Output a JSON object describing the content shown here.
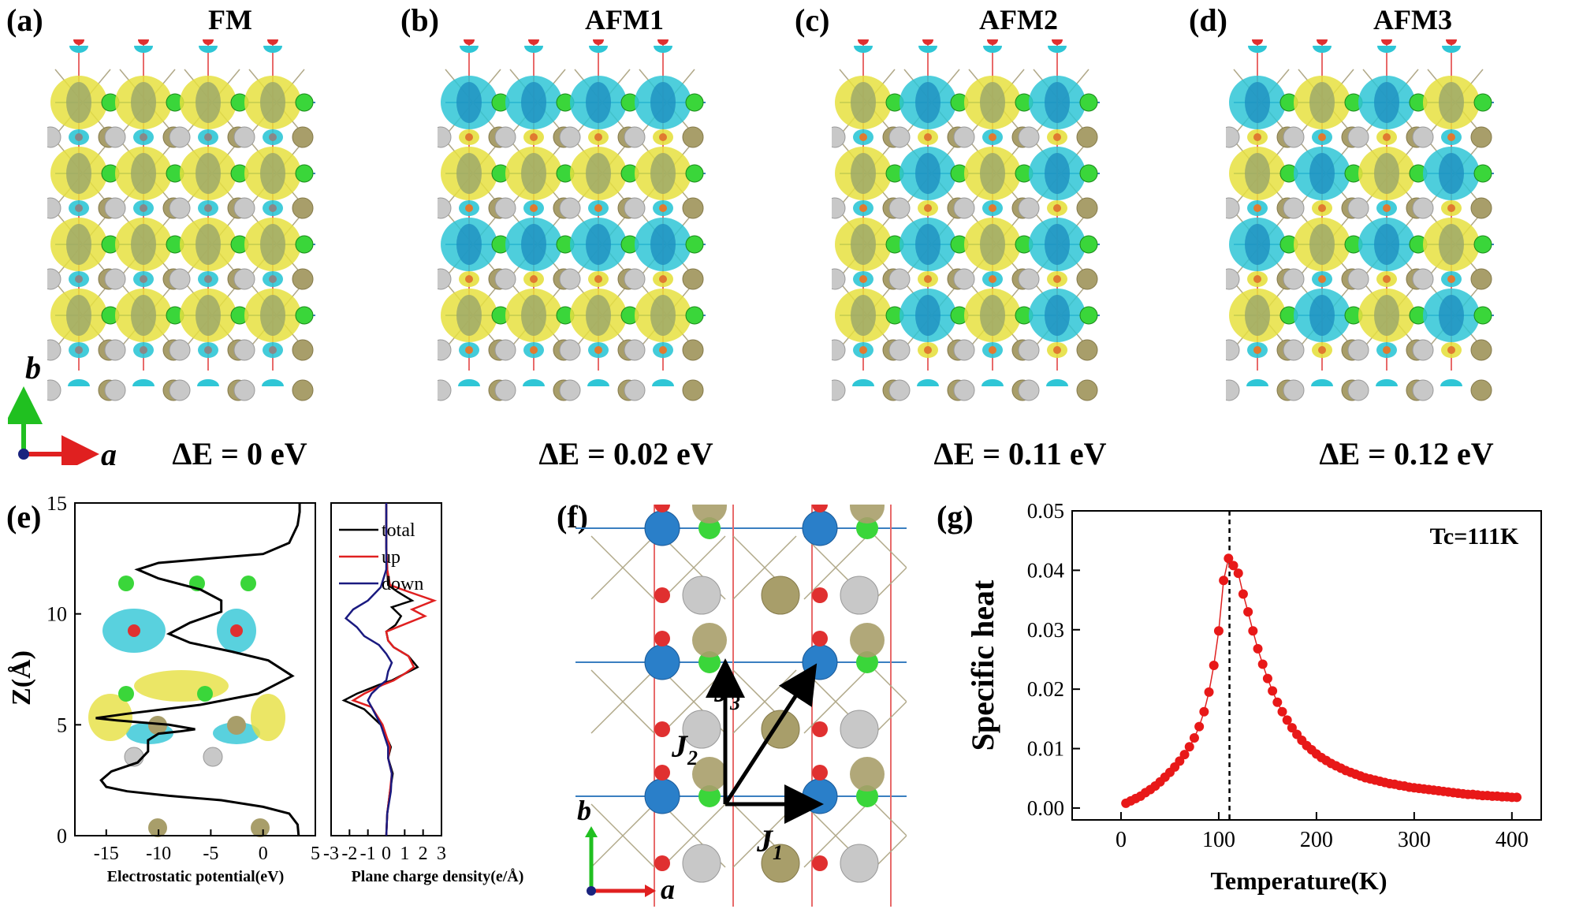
{
  "panels": {
    "a": {
      "letter": "(a)",
      "title": "FM",
      "energy": "ΔE = 0 eV"
    },
    "b": {
      "letter": "(b)",
      "title": "AFM1",
      "energy": "ΔE = 0.02 eV"
    },
    "c": {
      "letter": "(c)",
      "title": "AFM2",
      "energy": "ΔE = 0.11 eV"
    },
    "d": {
      "letter": "(d)",
      "title": "AFM3",
      "energy": "ΔE = 0.12 eV"
    },
    "e": {
      "letter": "(e)"
    },
    "f": {
      "letter": "(f)"
    },
    "g": {
      "letter": "(g)"
    }
  },
  "axes_labels": {
    "a": "a",
    "b": "b"
  },
  "colors": {
    "spin_up": "#e6e040",
    "spin_down": "#2fc6d6",
    "fe_atom": "#2a7fc9",
    "cl_atom": "#3ad63a",
    "o_atom": "#e03030",
    "te_atom": "#a89e6a",
    "ge_atom": "#c8c8c8"
  },
  "exchange_labels": [
    "J1",
    "J2",
    "J3"
  ],
  "chart_data": [
    {
      "type": "line",
      "id": "electrostatic-potential",
      "xlabel": "Electrostatic potential(eV)",
      "ylabel": "Z(Å)",
      "xlim": [
        -18,
        5
      ],
      "ylim": [
        0,
        15
      ],
      "xticks": [
        -15,
        -10,
        -5,
        0,
        5
      ],
      "yticks": [
        0,
        5,
        10,
        15
      ],
      "series": [
        {
          "x": [
            3.4,
            3.3,
            2.5,
            0.0,
            -4.0,
            -9.0,
            -13.0,
            -15.0,
            -15.5,
            -14.5,
            -12.0,
            -11.0,
            -11.0,
            -10.0,
            -8.0,
            -6.5,
            -9.0,
            -14.0,
            -16.0,
            -13.0,
            -6.0,
            -0.5,
            2.8,
            0.5,
            -3.0,
            -7.0,
            -9.0,
            -7.0,
            -4.0,
            -4.0,
            -6.0,
            -10.0,
            -12.0,
            -10.0,
            -5.0,
            0.0,
            2.5,
            3.3,
            3.5,
            3.5
          ],
          "y": [
            0.0,
            0.5,
            1.0,
            1.3,
            1.6,
            1.8,
            2.0,
            2.2,
            2.5,
            2.9,
            3.3,
            3.8,
            4.3,
            4.6,
            4.7,
            4.8,
            5.0,
            5.2,
            5.3,
            5.5,
            5.9,
            6.4,
            7.2,
            7.9,
            8.3,
            8.7,
            9.1,
            9.6,
            10.1,
            10.6,
            11.1,
            11.6,
            12.0,
            12.3,
            12.5,
            12.7,
            13.2,
            14.0,
            14.6,
            15.0
          ]
        }
      ]
    },
    {
      "type": "line",
      "id": "plane-charge-density",
      "xlabel": "Plane charge density(e/Å)",
      "xlim": [
        -3,
        3
      ],
      "ylim": [
        0,
        15
      ],
      "xticks": [
        -3,
        -2,
        -1,
        0,
        1,
        2,
        3
      ],
      "legend": "top-left",
      "series": [
        {
          "name": "total",
          "color": "#000000",
          "x": [
            0,
            0.05,
            0.2,
            0.35,
            0.1,
            0.25,
            -0.3,
            -1.2,
            -2.3,
            -1.6,
            -0.4,
            0.3,
            1.0,
            1.7,
            1.2,
            0.4,
            0.1,
            0.0,
            0.5,
            0.8,
            0.3,
            1.4,
            0.6,
            0.1,
            0.05,
            0.0,
            0.0
          ],
          "y": [
            0,
            1.0,
            2.0,
            2.8,
            3.5,
            4.0,
            5.0,
            5.7,
            6.1,
            6.4,
            6.8,
            7.0,
            7.3,
            7.6,
            8.1,
            8.5,
            8.8,
            9.2,
            9.5,
            9.9,
            10.3,
            10.6,
            11.0,
            11.3,
            12.0,
            13.0,
            15.0
          ]
        },
        {
          "name": "up",
          "color": "#e02020",
          "x": [
            0,
            0.05,
            0.2,
            0.3,
            0.1,
            0.2,
            -0.2,
            -0.8,
            -1.8,
            -1.2,
            -0.2,
            0.4,
            1.0,
            1.5,
            1.2,
            0.4,
            0.1,
            0.0,
            0.9,
            2.1,
            1.4,
            2.6,
            1.2,
            0.2,
            0.05,
            0.0,
            0.0
          ],
          "y": [
            0,
            1.0,
            2.0,
            2.8,
            3.5,
            4.0,
            5.0,
            5.8,
            6.1,
            6.4,
            6.8,
            7.0,
            7.3,
            7.6,
            8.1,
            8.5,
            8.8,
            9.2,
            9.5,
            9.9,
            10.2,
            10.6,
            11.0,
            11.3,
            12.0,
            13.0,
            15.0
          ]
        },
        {
          "name": "down",
          "color": "#1a1a80",
          "x": [
            0,
            0.05,
            0.25,
            0.3,
            0.1,
            0.1,
            -0.3,
            -0.8,
            -1.0,
            -0.8,
            -0.3,
            0.0,
            0.1,
            0.3,
            0.0,
            -0.4,
            -1.2,
            -1.6,
            -2.2,
            -1.8,
            -1.0,
            -0.3,
            0.0,
            0.0,
            0.0
          ],
          "y": [
            0,
            1.0,
            2.0,
            2.8,
            3.5,
            4.0,
            5.0,
            5.8,
            6.1,
            6.4,
            6.8,
            7.0,
            7.4,
            7.8,
            8.2,
            8.6,
            9.0,
            9.4,
            9.8,
            10.2,
            10.6,
            11.2,
            12.0,
            13.0,
            15.0
          ]
        }
      ]
    },
    {
      "type": "scatter",
      "id": "specific-heat",
      "xlabel": "Temperature(K)",
      "ylabel": "Specific heat",
      "xlim": [
        -50,
        430
      ],
      "ylim": [
        -0.002,
        0.05
      ],
      "xticks": [
        0,
        100,
        200,
        300,
        400
      ],
      "yticks": [
        0.0,
        0.01,
        0.02,
        0.03,
        0.04,
        0.05
      ],
      "annotation": "Tc=111K",
      "tc": 111,
      "x": [
        5,
        10,
        15,
        20,
        25,
        30,
        35,
        40,
        45,
        50,
        55,
        60,
        65,
        70,
        75,
        80,
        85,
        90,
        95,
        100,
        105,
        110,
        115,
        120,
        125,
        130,
        135,
        140,
        145,
        150,
        155,
        160,
        165,
        170,
        175,
        180,
        185,
        190,
        195,
        200,
        205,
        210,
        215,
        220,
        225,
        230,
        235,
        240,
        245,
        250,
        255,
        260,
        265,
        270,
        275,
        280,
        285,
        290,
        295,
        300,
        305,
        310,
        315,
        320,
        325,
        330,
        335,
        340,
        345,
        350,
        355,
        360,
        365,
        370,
        375,
        380,
        385,
        390,
        395,
        400,
        405
      ],
      "y": [
        0.0008,
        0.0012,
        0.0016,
        0.002,
        0.0026,
        0.0031,
        0.0037,
        0.0044,
        0.0052,
        0.006,
        0.0069,
        0.0079,
        0.009,
        0.0103,
        0.0118,
        0.0137,
        0.0162,
        0.0195,
        0.024,
        0.0298,
        0.0383,
        0.042,
        0.0408,
        0.0395,
        0.036,
        0.033,
        0.0298,
        0.0268,
        0.0242,
        0.0218,
        0.0197,
        0.0178,
        0.0162,
        0.0148,
        0.0135,
        0.0124,
        0.0114,
        0.0105,
        0.0098,
        0.0091,
        0.0085,
        0.008,
        0.0075,
        0.0071,
        0.0067,
        0.0063,
        0.006,
        0.0057,
        0.0054,
        0.0051,
        0.0049,
        0.0047,
        0.0045,
        0.0043,
        0.0041,
        0.004,
        0.0038,
        0.0037,
        0.0035,
        0.0034,
        0.0033,
        0.0032,
        0.0031,
        0.003,
        0.0029,
        0.0028,
        0.0027,
        0.0026,
        0.0025,
        0.0024,
        0.0023,
        0.0023,
        0.0022,
        0.0021,
        0.0021,
        0.002,
        0.002,
        0.0019,
        0.0019,
        0.0018,
        0.0018
      ]
    }
  ]
}
